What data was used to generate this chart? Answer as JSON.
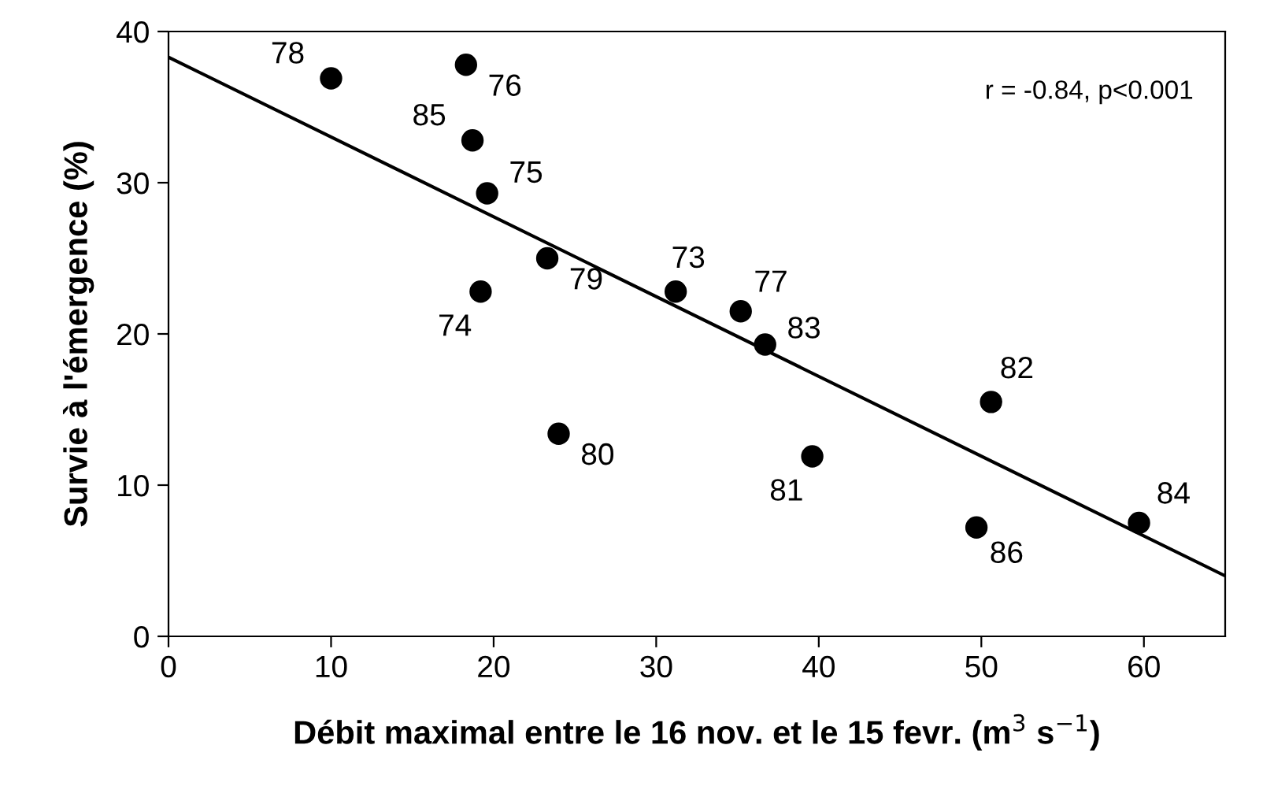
{
  "chart_data": {
    "type": "scatter",
    "xlabel": "Débit maximal entre le 16 nov. et le 15 fevr. (m$^{3}$ s$^{−1}$)",
    "ylabel": "Survie à l'émergence (%)",
    "xlim": [
      0,
      65
    ],
    "ylim": [
      0,
      40
    ],
    "xticks": [
      0,
      10,
      20,
      30,
      40,
      50,
      60
    ],
    "yticks": [
      0,
      10,
      20,
      30,
      40
    ],
    "grid": false,
    "marker": "circle",
    "series": [
      {
        "color": "#000000",
        "x": [
          10.0,
          18.3,
          18.7,
          19.6,
          23.3,
          19.2,
          24.0,
          31.2,
          35.2,
          36.7,
          39.6,
          50.6,
          49.7,
          59.7
        ],
        "values": [
          36.9,
          37.8,
          32.8,
          29.3,
          25.0,
          22.8,
          13.4,
          22.8,
          21.5,
          19.3,
          11.9,
          15.5,
          7.2,
          7.5
        ]
      },
      {
        "type": "line",
        "color": "#000000",
        "x": [
          0,
          65
        ],
        "values": [
          38.3,
          4.0
        ],
        "line_style": "solid",
        "marker": "none"
      }
    ],
    "annotations": [
      {
        "text": "78",
        "x": 10.0,
        "y": 36.9
      },
      {
        "text": "76",
        "x": 18.3,
        "y": 37.8
      },
      {
        "text": "85",
        "x": 18.7,
        "y": 32.8
      },
      {
        "text": "75",
        "x": 19.6,
        "y": 29.3
      },
      {
        "text": "79",
        "x": 23.3,
        "y": 25.0
      },
      {
        "text": "74",
        "x": 19.2,
        "y": 22.8
      },
      {
        "text": "80",
        "x": 24.0,
        "y": 13.4
      },
      {
        "text": "73",
        "x": 31.2,
        "y": 22.8
      },
      {
        "text": "77",
        "x": 35.2,
        "y": 21.5
      },
      {
        "text": "83",
        "x": 36.7,
        "y": 19.3
      },
      {
        "text": "81",
        "x": 39.6,
        "y": 11.9
      },
      {
        "text": "82",
        "x": 50.6,
        "y": 15.5
      },
      {
        "text": "86",
        "x": 49.7,
        "y": 7.2
      },
      {
        "text": "84",
        "x": 59.7,
        "y": 7.5
      },
      "r = -0.84, p<0.001"
    ]
  }
}
